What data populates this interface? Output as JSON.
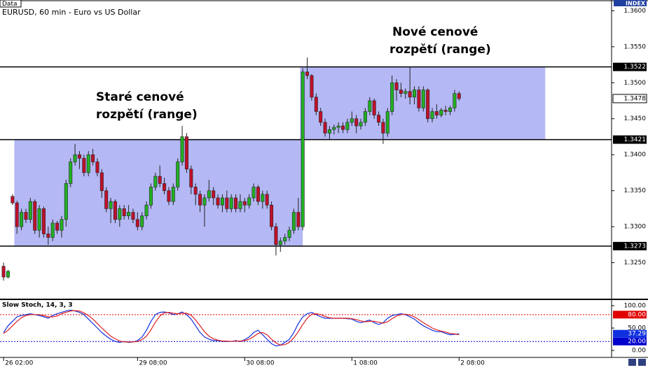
{
  "header": {
    "data_label": "Data",
    "index_label": "INDEX"
  },
  "chart_data": [
    {
      "type": "candlestick",
      "title": "EURUSD, 60 min - Euro vs US Dollar",
      "open": [
        1.3245,
        1.323,
        1.3342,
        1.3333,
        1.33,
        1.332,
        1.331,
        1.3335,
        1.3295,
        1.3325,
        1.329,
        1.3285,
        1.3305,
        1.3295,
        1.331,
        1.336,
        1.339,
        1.34,
        1.3395,
        1.3375,
        1.34,
        1.339,
        1.3375,
        1.335,
        1.3325,
        1.3335,
        1.331,
        1.3325,
        1.3315,
        1.332,
        1.331,
        1.33,
        1.3315,
        1.333,
        1.3355,
        1.337,
        1.336,
        1.335,
        1.3335,
        1.3355,
        1.339,
        1.3425,
        1.338,
        1.3355,
        1.3345,
        1.333,
        1.334,
        1.335,
        1.334,
        1.333,
        1.334,
        1.3325,
        1.334,
        1.3325,
        1.3335,
        1.333,
        1.334,
        1.3355,
        1.3335,
        1.3345,
        1.333,
        1.33,
        1.3275,
        1.328,
        1.3285,
        1.3295,
        1.332,
        1.33,
        1.3515,
        1.351,
        1.348,
        1.346,
        1.3445,
        1.343,
        1.3435,
        1.3438,
        1.344,
        1.3435,
        1.3445,
        1.345,
        1.344,
        1.3445,
        1.346,
        1.3475,
        1.3455,
        1.3445,
        1.343,
        1.346,
        1.35,
        1.349,
        1.3485,
        1.3488,
        1.348,
        1.349,
        1.3465,
        1.349,
        1.345,
        1.346,
        1.3455,
        1.3462,
        1.346,
        1.3465,
        1.3485
      ],
      "high": [
        1.325,
        1.324,
        1.3345,
        1.3336,
        1.3325,
        1.3325,
        1.334,
        1.3338,
        1.333,
        1.3328,
        1.33,
        1.331,
        1.3308,
        1.3315,
        1.3365,
        1.3395,
        1.3415,
        1.3405,
        1.34,
        1.3405,
        1.3408,
        1.3395,
        1.338,
        1.3355,
        1.334,
        1.3338,
        1.333,
        1.333,
        1.333,
        1.3325,
        1.332,
        1.332,
        1.3335,
        1.336,
        1.3375,
        1.3385,
        1.3368,
        1.3355,
        1.336,
        1.3395,
        1.344,
        1.343,
        1.3385,
        1.336,
        1.335,
        1.3345,
        1.3365,
        1.3355,
        1.3345,
        1.3345,
        1.335,
        1.3345,
        1.3345,
        1.3345,
        1.334,
        1.3345,
        1.336,
        1.3358,
        1.335,
        1.335,
        1.3335,
        1.3305,
        1.3285,
        1.329,
        1.33,
        1.3325,
        1.334,
        1.352,
        1.3535,
        1.3512,
        1.3485,
        1.3465,
        1.345,
        1.344,
        1.3442,
        1.3445,
        1.3445,
        1.345,
        1.346,
        1.3455,
        1.345,
        1.3465,
        1.348,
        1.3478,
        1.346,
        1.345,
        1.3465,
        1.351,
        1.3505,
        1.35,
        1.3492,
        1.3522,
        1.3495,
        1.3495,
        1.3495,
        1.3492,
        1.3465,
        1.347,
        1.3465,
        1.3468,
        1.3468,
        1.349,
        1.3488
      ],
      "low": [
        1.3225,
        1.3228,
        1.333,
        1.329,
        1.3295,
        1.3305,
        1.3305,
        1.329,
        1.3285,
        1.3285,
        1.3275,
        1.328,
        1.329,
        1.3285,
        1.33,
        1.3355,
        1.3385,
        1.338,
        1.337,
        1.337,
        1.3385,
        1.337,
        1.334,
        1.332,
        1.3305,
        1.3305,
        1.33,
        1.331,
        1.331,
        1.3305,
        1.3295,
        1.3295,
        1.331,
        1.3325,
        1.335,
        1.3355,
        1.3345,
        1.333,
        1.333,
        1.335,
        1.3385,
        1.3375,
        1.3345,
        1.333,
        1.332,
        1.33,
        1.3335,
        1.333,
        1.3325,
        1.332,
        1.332,
        1.332,
        1.332,
        1.332,
        1.332,
        1.3325,
        1.3335,
        1.333,
        1.3325,
        1.3325,
        1.3295,
        1.326,
        1.3265,
        1.3275,
        1.328,
        1.329,
        1.3295,
        1.3295,
        1.3505,
        1.3475,
        1.3455,
        1.344,
        1.3425,
        1.342,
        1.3428,
        1.343,
        1.343,
        1.343,
        1.344,
        1.343,
        1.3435,
        1.344,
        1.3455,
        1.345,
        1.344,
        1.3415,
        1.3425,
        1.3455,
        1.3475,
        1.348,
        1.3478,
        1.347,
        1.347,
        1.346,
        1.346,
        1.3445,
        1.3445,
        1.345,
        1.3452,
        1.3455,
        1.3455,
        1.346,
        1.3475
      ],
      "close": [
        1.323,
        1.3238,
        1.3333,
        1.33,
        1.332,
        1.331,
        1.3335,
        1.3295,
        1.3325,
        1.329,
        1.3285,
        1.3305,
        1.3295,
        1.331,
        1.336,
        1.339,
        1.34,
        1.3395,
        1.3375,
        1.34,
        1.339,
        1.3375,
        1.335,
        1.3325,
        1.3335,
        1.331,
        1.3325,
        1.3315,
        1.332,
        1.331,
        1.33,
        1.3315,
        1.333,
        1.3355,
        1.337,
        1.336,
        1.335,
        1.3335,
        1.3355,
        1.339,
        1.3425,
        1.338,
        1.3355,
        1.3345,
        1.333,
        1.334,
        1.335,
        1.334,
        1.333,
        1.334,
        1.3325,
        1.334,
        1.3325,
        1.3335,
        1.333,
        1.334,
        1.3355,
        1.3335,
        1.3345,
        1.333,
        1.33,
        1.3275,
        1.328,
        1.3285,
        1.3295,
        1.332,
        1.33,
        1.3515,
        1.351,
        1.348,
        1.346,
        1.3445,
        1.343,
        1.3435,
        1.3438,
        1.344,
        1.3435,
        1.3445,
        1.345,
        1.344,
        1.3445,
        1.346,
        1.3475,
        1.3455,
        1.3445,
        1.343,
        1.346,
        1.35,
        1.349,
        1.3485,
        1.3488,
        1.348,
        1.349,
        1.3465,
        1.349,
        1.345,
        1.346,
        1.3455,
        1.3462,
        1.346,
        1.3465,
        1.3485,
        1.3478
      ],
      "up_color": "#22b022",
      "down_color": "#c0102a",
      "xlim": [
        -0.8,
        136
      ],
      "xticks": [
        {
          "value": 0,
          "label": "26 02:00"
        },
        {
          "value": 30,
          "label": "29 08:00"
        },
        {
          "value": 54,
          "label": "30 08:00"
        },
        {
          "value": 78,
          "label": "1 08:00"
        },
        {
          "value": 102,
          "label": "2 08:00"
        }
      ],
      "ylim": [
        1.3199,
        1.3614
      ],
      "yticks": [
        {
          "value": 1.36,
          "label": "1.3600"
        },
        {
          "value": 1.355,
          "label": "1.3550"
        },
        {
          "value": 1.35,
          "label": "1.3500"
        },
        {
          "value": 1.345,
          "label": "1.3450"
        },
        {
          "value": 1.34,
          "label": "1.3400"
        },
        {
          "value": 1.335,
          "label": "1.3350"
        },
        {
          "value": 1.33,
          "label": "1.3300"
        },
        {
          "value": 1.325,
          "label": "1.3250"
        }
      ],
      "hlines": [
        1.3522,
        1.3421,
        1.3273
      ],
      "ranges": [
        {
          "from": 2.4,
          "to": 67,
          "low": 1.3273,
          "high": 1.3421
        },
        {
          "from": 66.4,
          "to": 121.3,
          "low": 1.3421,
          "high": 1.3522
        }
      ],
      "range_color": "#b4b8f4",
      "annotations": [
        {
          "lines": [
            "Staré cenové",
            "rozpětí (range)"
          ]
        },
        {
          "lines": [
            "Nové cenové",
            "rozpětí (range)"
          ]
        }
      ]
    },
    {
      "type": "line",
      "title": "Slow Stoch, 14, 3, 3",
      "series": [
        {
          "color": "#1030e0",
          "values": [
            40,
            55,
            65,
            75,
            78,
            80,
            82,
            80,
            78,
            75,
            72,
            78,
            82,
            85,
            88,
            90,
            88,
            85,
            80,
            70,
            60,
            50,
            40,
            32,
            25,
            20,
            18,
            20,
            18,
            19,
            22,
            30,
            45,
            65,
            80,
            85,
            86,
            84,
            80,
            82,
            86,
            80,
            70,
            55,
            40,
            30,
            25,
            22,
            22,
            20,
            20,
            20,
            22,
            20,
            24,
            30,
            40,
            45,
            35,
            25,
            15,
            10,
            12,
            18,
            25,
            40,
            60,
            75,
            82,
            85,
            80,
            75,
            72,
            72,
            72,
            72,
            72,
            71,
            70,
            65,
            62,
            65,
            68,
            62,
            58,
            62,
            72,
            78,
            80,
            82,
            80,
            75,
            70,
            62,
            55,
            50,
            45,
            42,
            42,
            38,
            35,
            36,
            37.29
          ]
        },
        {
          "color": "#e02020",
          "values": [
            38,
            45,
            55,
            65,
            73,
            78,
            80,
            80,
            80,
            78,
            75,
            75,
            77,
            82,
            85,
            88,
            89,
            88,
            84,
            78,
            70,
            60,
            50,
            41,
            32,
            26,
            21,
            19,
            19,
            19,
            20,
            24,
            32,
            46,
            63,
            77,
            84,
            85,
            83,
            82,
            83,
            83,
            79,
            68,
            55,
            42,
            32,
            26,
            23,
            21,
            21,
            20,
            21,
            21,
            22,
            25,
            31,
            38,
            40,
            35,
            25,
            17,
            12,
            13,
            18,
            28,
            42,
            58,
            72,
            81,
            82,
            80,
            76,
            73,
            72,
            72,
            72,
            72,
            71,
            69,
            66,
            64,
            65,
            65,
            63,
            61,
            64,
            71,
            77,
            80,
            81,
            79,
            75,
            69,
            62,
            56,
            50,
            46,
            43,
            41,
            38,
            37,
            35
          ]
        }
      ],
      "ylim": [
        -14,
        111
      ],
      "yticks": [
        {
          "value": 100,
          "label": "100.00"
        },
        {
          "value": 50,
          "label": "50.00"
        },
        {
          "value": 0,
          "label": "0.00"
        }
      ],
      "levels": [
        {
          "value": 80,
          "label": "80.00",
          "color": "#e00000"
        },
        {
          "value": 20,
          "label": "20.00",
          "color": "#0000cc"
        }
      ]
    }
  ]
}
